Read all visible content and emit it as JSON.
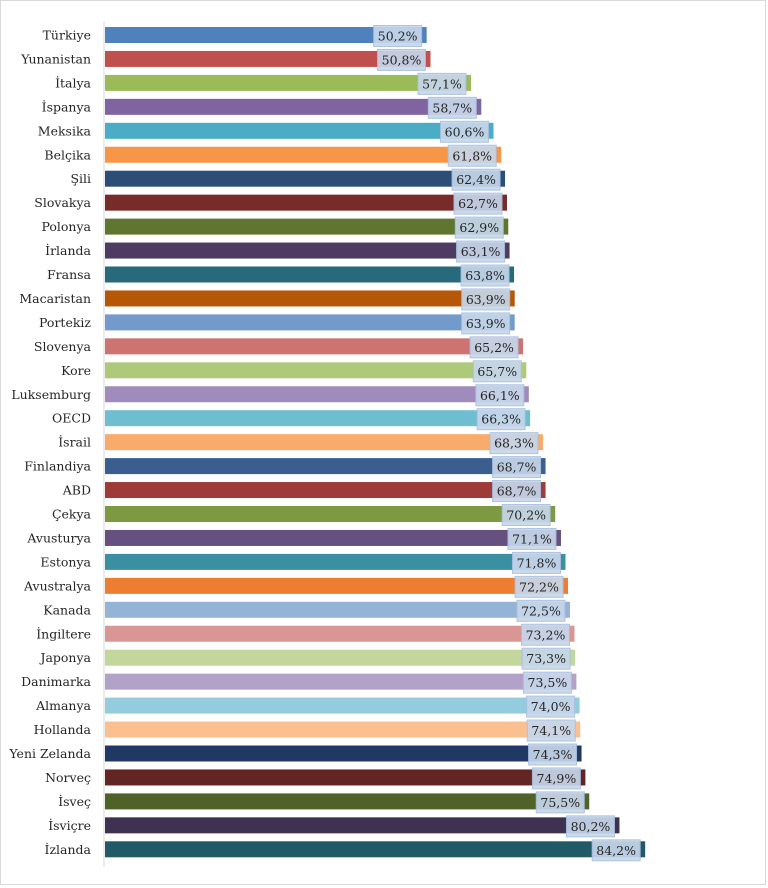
{
  "chart_data": {
    "type": "bar",
    "orientation": "horizontal",
    "categories": [
      "Türkiye",
      "Yunanistan",
      "İtalya",
      "İspanya",
      "Meksika",
      "Belçika",
      "Şili",
      "Slovakya",
      "Polonya",
      "İrlanda",
      "Fransa",
      "Macaristan",
      "Portekiz",
      "Slovenya",
      "Kore",
      "Luksemburg",
      "OECD",
      "İsrail",
      "Finlandiya",
      "ABD",
      "Çekya",
      "Avusturya",
      "Estonya",
      "Avustralya",
      "Kanada",
      "İngiltere",
      "Japonya",
      "Danimarka",
      "Almanya",
      "Hollanda",
      "Yeni Zelanda",
      "Norveç",
      "İsveç",
      "İsviçre",
      "İzlanda"
    ],
    "values": [
      50.2,
      50.8,
      57.1,
      58.7,
      60.6,
      61.8,
      62.4,
      62.7,
      62.9,
      63.1,
      63.8,
      63.9,
      63.9,
      65.2,
      65.7,
      66.1,
      66.3,
      68.3,
      68.7,
      68.7,
      70.2,
      71.1,
      71.8,
      72.2,
      72.5,
      73.2,
      73.3,
      73.5,
      74.0,
      74.1,
      74.3,
      74.9,
      75.5,
      80.2,
      84.2
    ],
    "value_labels": [
      "50,2%",
      "50,8%",
      "57,1%",
      "58,7%",
      "60,6%",
      "61,8%",
      "62,4%",
      "62,7%",
      "62,9%",
      "63,1%",
      "63,8%",
      "63,9%",
      "63,9%",
      "65,2%",
      "65,7%",
      "66,1%",
      "66,3%",
      "68,3%",
      "68,7%",
      "68,7%",
      "70,2%",
      "71,1%",
      "71,8%",
      "72,2%",
      "72,5%",
      "73,2%",
      "73,3%",
      "73,5%",
      "74,0%",
      "74,1%",
      "74,3%",
      "74,9%",
      "75,5%",
      "80,2%",
      "84,2%"
    ],
    "colors": [
      "#4f81bd",
      "#c0504d",
      "#9bbb59",
      "#8064a2",
      "#4bacc6",
      "#f79646",
      "#2c4d75",
      "#772c2a",
      "#5f7530",
      "#4d3b62",
      "#276a7c",
      "#b65708",
      "#729aca",
      "#cd7371",
      "#afc97a",
      "#a08cbc",
      "#6fbdd1",
      "#f9ab6b",
      "#3a5f8e",
      "#9e3a37",
      "#7d9a43",
      "#65507f",
      "#3b8fa3",
      "#ed7d31",
      "#95b3d7",
      "#d99694",
      "#c3d69b",
      "#b3a2c7",
      "#93cddd",
      "#fac08f",
      "#1f3864",
      "#632523",
      "#4f6228",
      "#3f3151",
      "#215967"
    ],
    "xlim": [
      0,
      85
    ],
    "title": "",
    "xlabel": "",
    "ylabel": "",
    "grid": false,
    "legend": "none"
  }
}
